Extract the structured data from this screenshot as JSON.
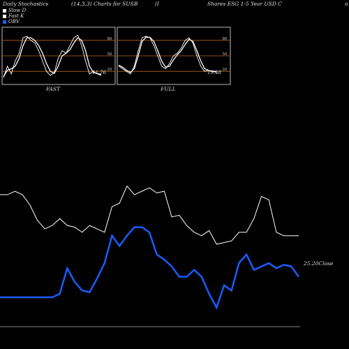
{
  "header": {
    "title": "Daily Stochastics",
    "params": "(14,3,3) Charts for SUSB",
    "bracket": "(I",
    "company": "Shares ESG 1-5 Year USD C",
    "suffix": "o"
  },
  "legend": [
    {
      "label": "Slow  D",
      "color": "#ffffff"
    },
    {
      "label": "Fast K",
      "color": "#ffffff"
    },
    {
      "label": "OBV",
      "color": "#1a5cff"
    }
  ],
  "chart_data": [
    {
      "type": "line",
      "label": "FAST",
      "value_label": "11.76",
      "y_ticks": [
        20,
        50,
        80
      ],
      "ylim": [
        0,
        100
      ],
      "grid_lines": [
        20,
        50,
        80
      ],
      "grid_color": "#b5651d",
      "series": [
        {
          "name": "Fast K",
          "values": [
            8,
            30,
            15,
            40,
            55,
            85,
            88,
            80,
            75,
            60,
            40,
            20,
            12,
            18,
            45,
            60,
            55,
            70,
            85,
            90,
            70,
            40,
            15,
            20,
            15,
            12
          ]
        },
        {
          "name": "Slow D",
          "values": [
            10,
            22,
            25,
            30,
            45,
            70,
            85,
            85,
            80,
            70,
            55,
            35,
            20,
            16,
            30,
            50,
            55,
            62,
            75,
            85,
            80,
            60,
            30,
            18,
            16,
            14
          ]
        }
      ]
    },
    {
      "type": "line",
      "label": "FULL",
      "value_label": "19.48",
      "y_ticks": [
        20,
        50,
        80
      ],
      "ylim": [
        0,
        100
      ],
      "grid_lines": [
        20,
        50,
        80
      ],
      "grid_color": "#b5651d",
      "series": [
        {
          "name": "Fast K",
          "values": [
            30,
            25,
            20,
            15,
            30,
            60,
            85,
            88,
            85,
            70,
            50,
            30,
            25,
            35,
            50,
            55,
            65,
            80,
            85,
            75,
            50,
            30,
            20,
            22,
            19,
            19
          ]
        },
        {
          "name": "Slow D",
          "values": [
            32,
            28,
            22,
            18,
            25,
            50,
            78,
            86,
            86,
            78,
            60,
            40,
            28,
            30,
            42,
            52,
            60,
            72,
            82,
            78,
            60,
            40,
            25,
            22,
            20,
            20
          ]
        }
      ]
    },
    {
      "type": "line",
      "close_label": "25.20",
      "close_text": "Close",
      "series": [
        {
          "name": "Close",
          "color": "#ffffff",
          "values": [
            78,
            78,
            80,
            78,
            72,
            63,
            58,
            60,
            64,
            60,
            59,
            56,
            60,
            58,
            56,
            71,
            73,
            83,
            78,
            80,
            82,
            79,
            80,
            65,
            66,
            60,
            56,
            54,
            57,
            49,
            50,
            51,
            56,
            56,
            64,
            77,
            75,
            56,
            54,
            54,
            54
          ]
        },
        {
          "name": "OBV",
          "color": "#1a5cff",
          "values": [
            18,
            18,
            18,
            18,
            18,
            18,
            18,
            18,
            20,
            35,
            27,
            22,
            21,
            29,
            38,
            54,
            48,
            54,
            59,
            59,
            56,
            43,
            40,
            36,
            30,
            30,
            34,
            30,
            20,
            12,
            25,
            22,
            38,
            43,
            34,
            36,
            38,
            35,
            37,
            36,
            30
          ]
        }
      ]
    }
  ]
}
